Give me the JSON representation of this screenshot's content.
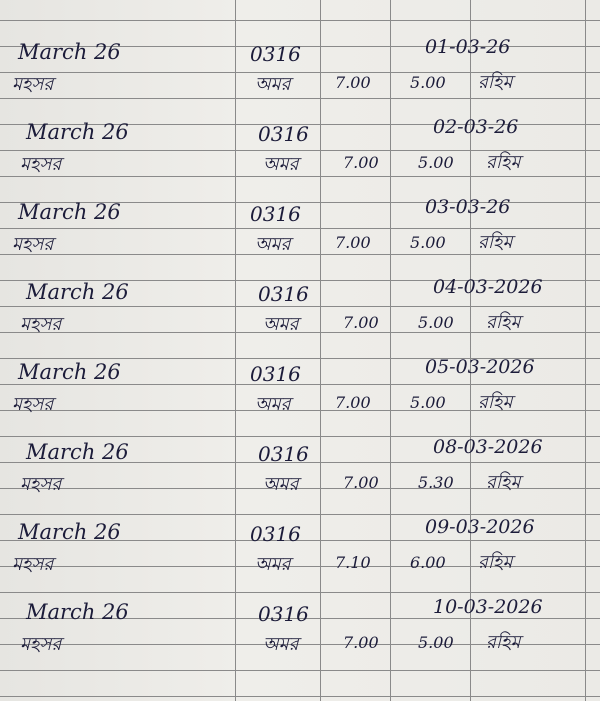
{
  "entries": [
    {
      "month": "March 26",
      "code": "0316",
      "date": "01-03-26",
      "left_note": "মহসর",
      "name": "অমর",
      "start": "7.00",
      "end": "5.00",
      "sign": "রহিম"
    },
    {
      "month": "March 26",
      "code": "0316",
      "date": "02-03-26",
      "left_note": "মহসর",
      "name": "অমর",
      "start": "7.00",
      "end": "5.00",
      "sign": "রহিম"
    },
    {
      "month": "March 26",
      "code": "0316",
      "date": "03-03-26",
      "left_note": "মহসর",
      "name": "অমর",
      "start": "7.00",
      "end": "5.00",
      "sign": "রহিম"
    },
    {
      "month": "March 26",
      "code": "0316",
      "date": "04-03-2026",
      "left_note": "মহসর",
      "name": "অমর",
      "start": "7.00",
      "end": "5.00",
      "sign": "রহিম"
    },
    {
      "month": "March 26",
      "code": "0316",
      "date": "05-03-2026",
      "left_note": "মহসর",
      "name": "অমর",
      "start": "7.00",
      "end": "5.00",
      "sign": "রহিম"
    },
    {
      "month": "March 26",
      "code": "0316",
      "date": "08-03-2026",
      "left_note": "মহসর",
      "name": "অমর",
      "start": "7.00",
      "end": "5.30",
      "sign": "রহিম"
    },
    {
      "month": "March 26",
      "code": "0316",
      "date": "09-03-2026",
      "left_note": "মহসর",
      "name": "অমর",
      "start": "7.10",
      "end": "6.00",
      "sign": "রহিম"
    },
    {
      "month": "March 26",
      "code": "0316",
      "date": "10-03-2026",
      "left_note": "মহসর",
      "name": "অমর",
      "start": "7.00",
      "end": "5.00",
      "sign": "রহিম"
    }
  ]
}
